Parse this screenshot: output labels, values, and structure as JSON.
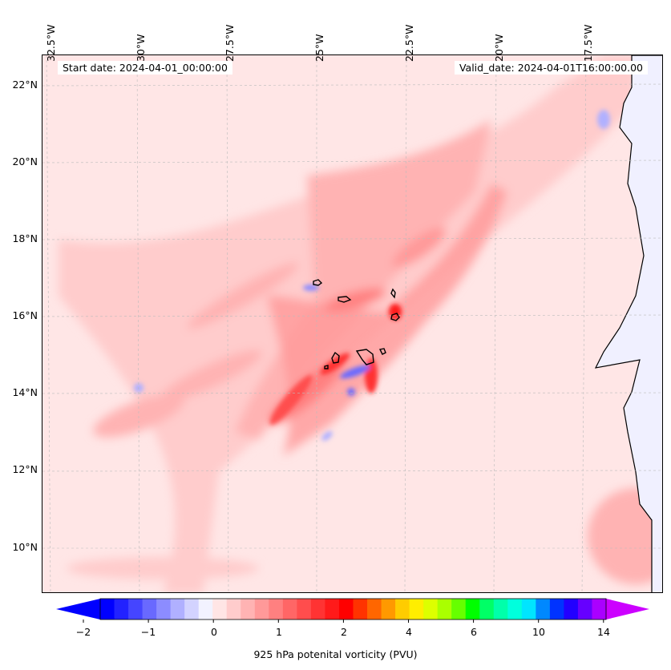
{
  "start_date": "Start date: 2024-04-01_00:00:00",
  "valid_date": "Valid_date: 2024-04-01T16:00:00.00",
  "lon_labels": [
    "32.5°W",
    "30°W",
    "27.5°W",
    "25°W",
    "22.5°W",
    "20°W",
    "17.5°W"
  ],
  "lat_labels": [
    "22°N",
    "20°N",
    "18°N",
    "16°N",
    "14°N",
    "12°N",
    "10°N"
  ],
  "colorbar": {
    "label": "925 hPa potenital vorticity (PVU)",
    "tick_labels": [
      "−2",
      "−1",
      "0",
      "1",
      "2",
      "4",
      "6",
      "10",
      "14"
    ],
    "colors": [
      "#0000ff",
      "#2222ff",
      "#4545ff",
      "#6969ff",
      "#8c8cff",
      "#b0b0ff",
      "#d3d3ff",
      "#f2f2ff",
      "#ffe5e5",
      "#ffcccc",
      "#ffb3b3",
      "#ff9999",
      "#ff8080",
      "#ff6666",
      "#ff4d4d",
      "#ff3333",
      "#ff1a1a",
      "#ff0000",
      "#ff3300",
      "#ff6600",
      "#ff9900",
      "#ffcc00",
      "#ffee00",
      "#ddff00",
      "#aaff00",
      "#66ff00",
      "#00ff00",
      "#00ff66",
      "#00ffaa",
      "#00ffdd",
      "#00e5ff",
      "#0088ff",
      "#0033ff",
      "#2200ff",
      "#6600ff",
      "#aa00ff"
    ],
    "extend_min_color": "#0000ff",
    "extend_max_color": "#cc00ff"
  },
  "map": {
    "background_color": "#ffe6e6",
    "ocean_high_color": "#ffcccc",
    "land_color": "#f0f0ff"
  }
}
